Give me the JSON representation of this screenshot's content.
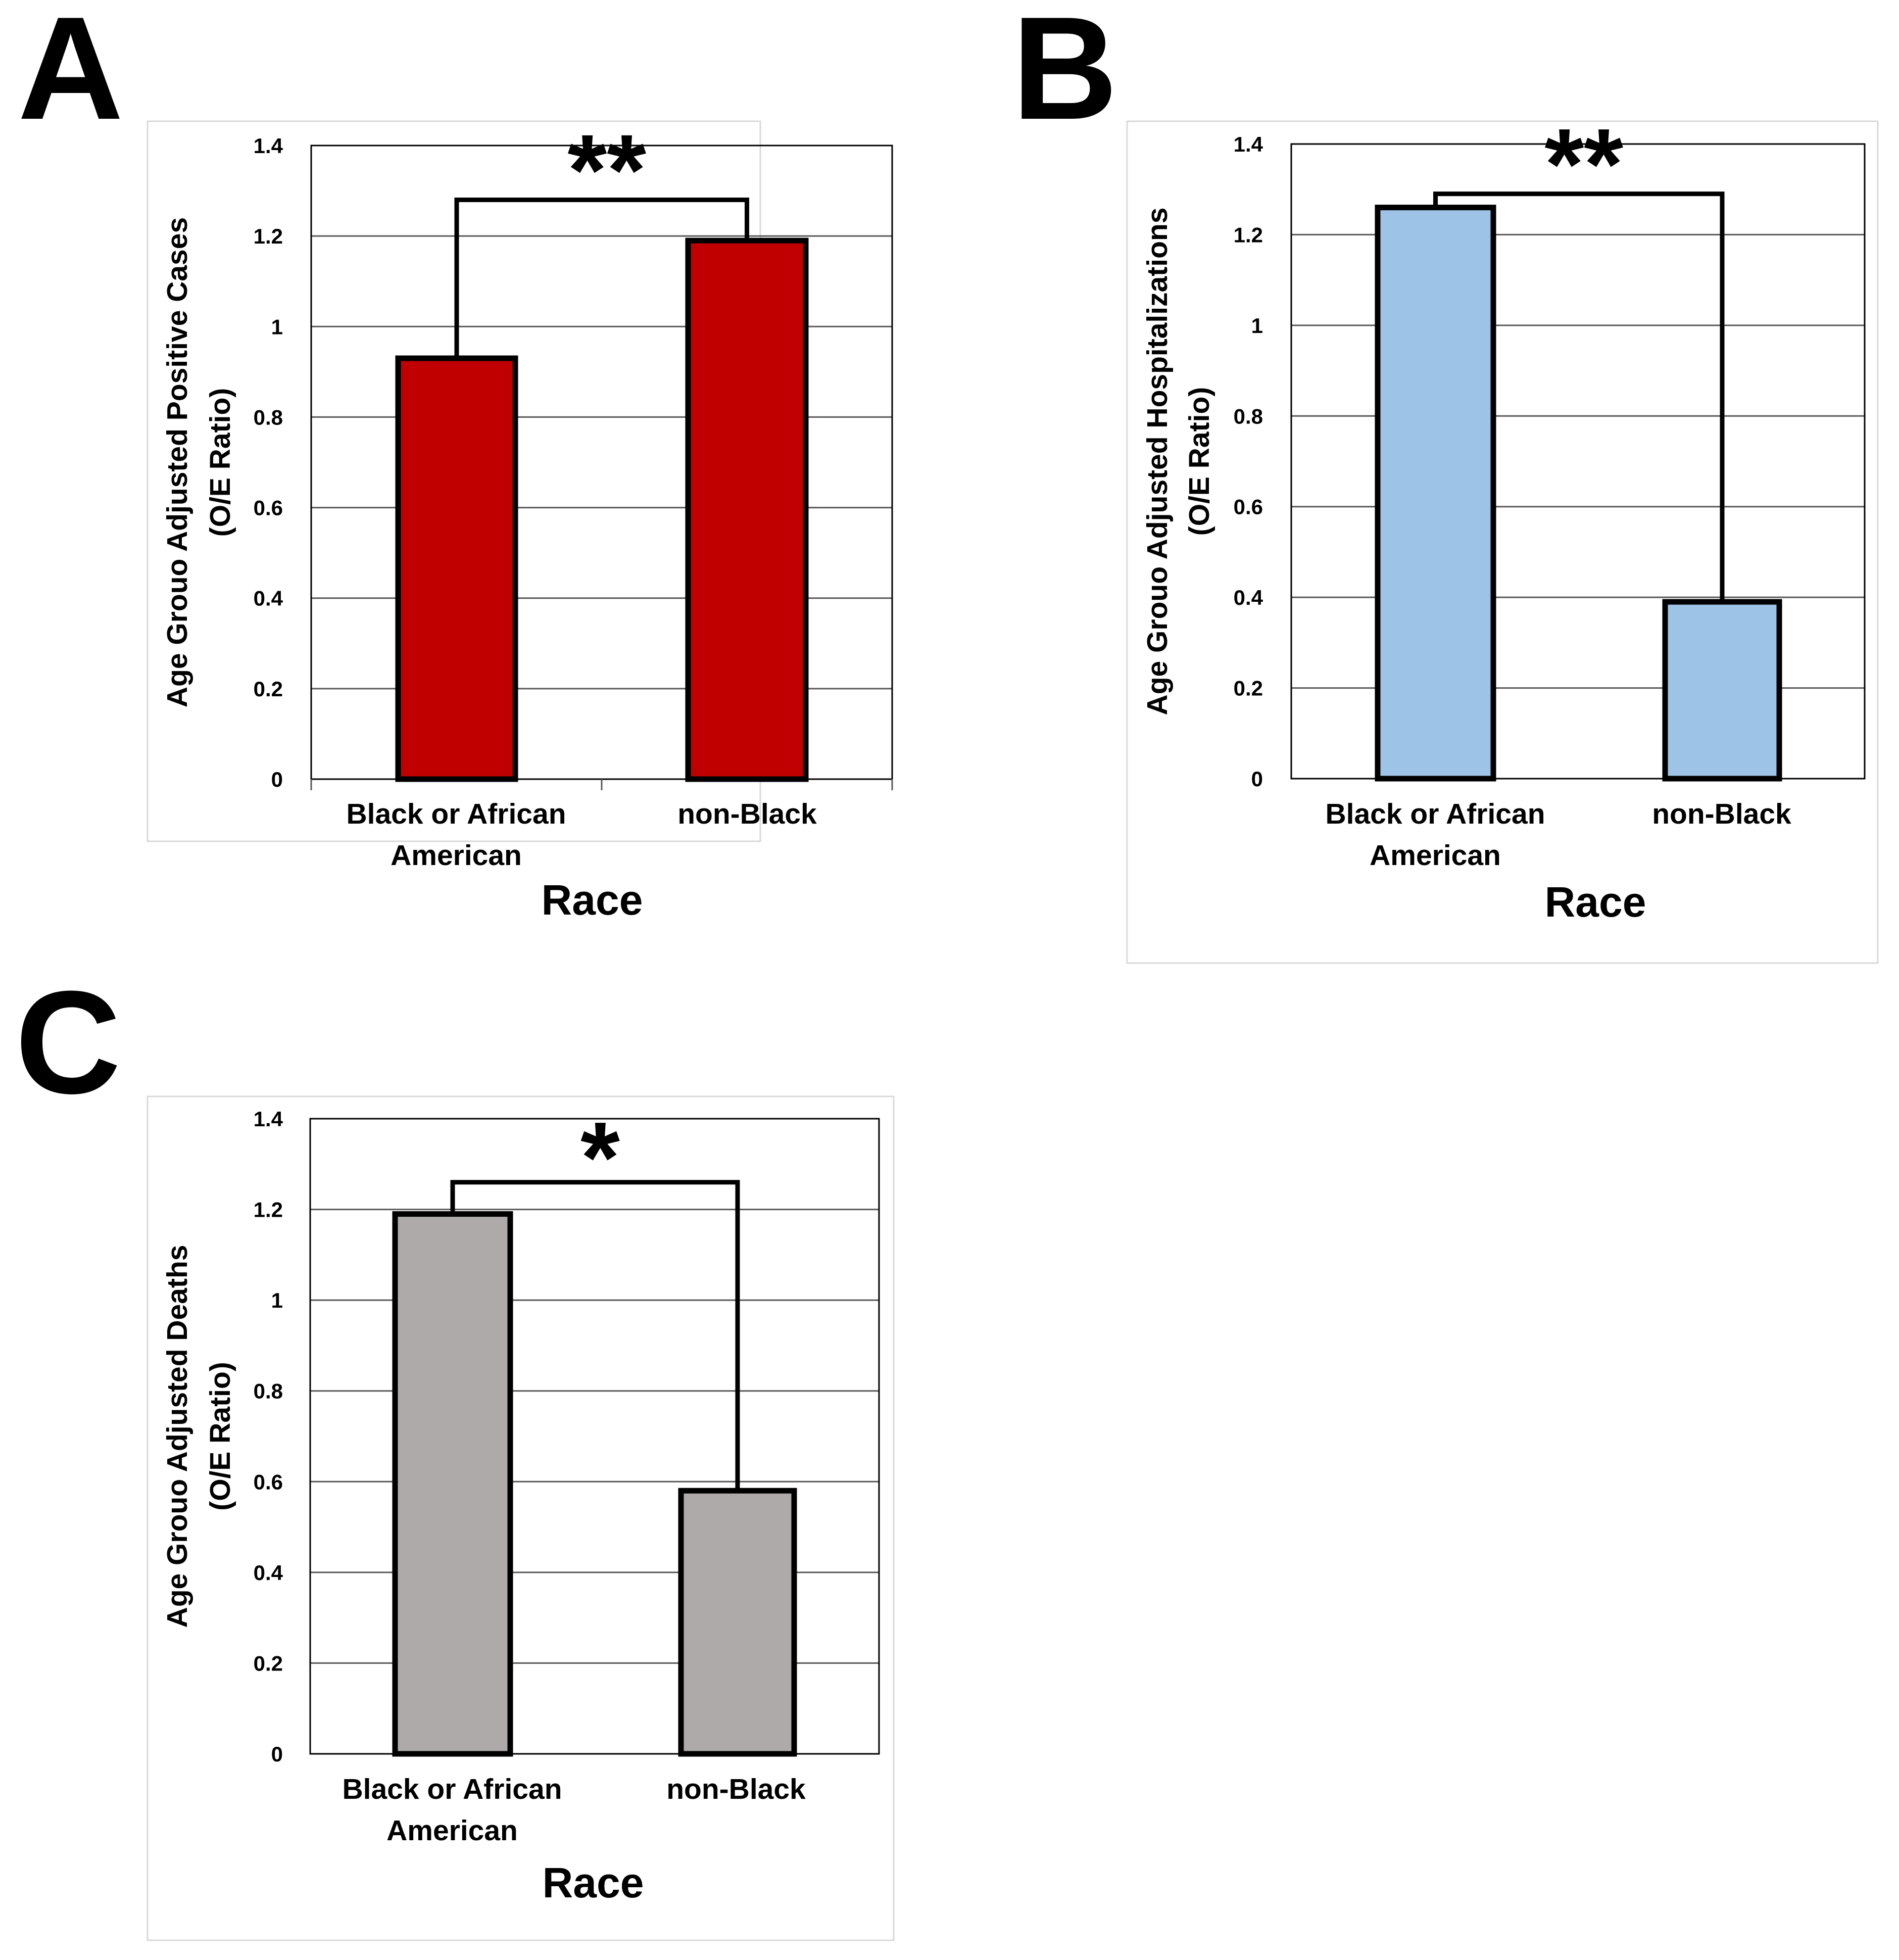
{
  "chart_data": [
    {
      "panel": "A",
      "type": "bar",
      "categories": [
        "Black or African American",
        "non-Black"
      ],
      "values": [
        0.93,
        1.19
      ],
      "color": "#c00000",
      "ylabel": "Age Grouo Adjusted Positive Cases (O/E Ratio)",
      "ylabel_lines": [
        "Age Grouo Adjusted Positive Cases",
        "(O/E Ratio)"
      ],
      "xlabel": "Race",
      "ylim": [
        0,
        1.4
      ],
      "yticks": [
        0,
        0.2,
        0.4,
        0.6,
        0.8,
        1,
        1.2,
        1.4
      ],
      "ytick_labels": [
        "0",
        "0.2",
        "0.4",
        "0.6",
        "0.8",
        "1",
        "1.2",
        "1.4"
      ],
      "grid": true,
      "significance": {
        "between": [
          "Black or African American",
          "non-Black"
        ],
        "label": "**",
        "bracket_y": 1.28
      }
    },
    {
      "panel": "B",
      "type": "bar",
      "categories": [
        "Black or African American",
        "non-Black"
      ],
      "values": [
        1.26,
        0.39
      ],
      "color": "#9dc3e6",
      "ylabel": "Age Grouo Adjusted Hospitalizations (O/E Ratio)",
      "ylabel_lines": [
        "Age Grouo Adjusted Hospitalizations",
        "(O/E Ratio)"
      ],
      "xlabel": "Race",
      "ylim": [
        0,
        1.4
      ],
      "yticks": [
        0,
        0.2,
        0.4,
        0.6,
        0.8,
        1,
        1.2,
        1.4
      ],
      "ytick_labels": [
        "0",
        "0.2",
        "0.4",
        "0.6",
        "0.8",
        "1",
        "1.2",
        "1.4"
      ],
      "grid": true,
      "significance": {
        "between": [
          "Black or African American",
          "non-Black"
        ],
        "label": "**",
        "bracket_y": 1.29
      }
    },
    {
      "panel": "C",
      "type": "bar",
      "categories": [
        "Black or African American",
        "non-Black"
      ],
      "values": [
        1.19,
        0.58
      ],
      "color": "#aeaaaa",
      "ylabel": "Age Grouo Adjusted  Deaths (O/E Ratio)",
      "ylabel_lines": [
        "Age Grouo Adjusted  Deaths",
        "(O/E Ratio)"
      ],
      "xlabel": "Race",
      "ylim": [
        0,
        1.4
      ],
      "yticks": [
        0,
        0.2,
        0.4,
        0.6,
        0.8,
        1,
        1.2,
        1.4
      ],
      "ytick_labels": [
        "0",
        "0.2",
        "0.4",
        "0.6",
        "0.8",
        "1",
        "1.2",
        "1.4"
      ],
      "grid": true,
      "significance": {
        "between": [
          "Black or African American",
          "non-Black"
        ],
        "label": "*",
        "bracket_y": 1.26
      }
    }
  ]
}
